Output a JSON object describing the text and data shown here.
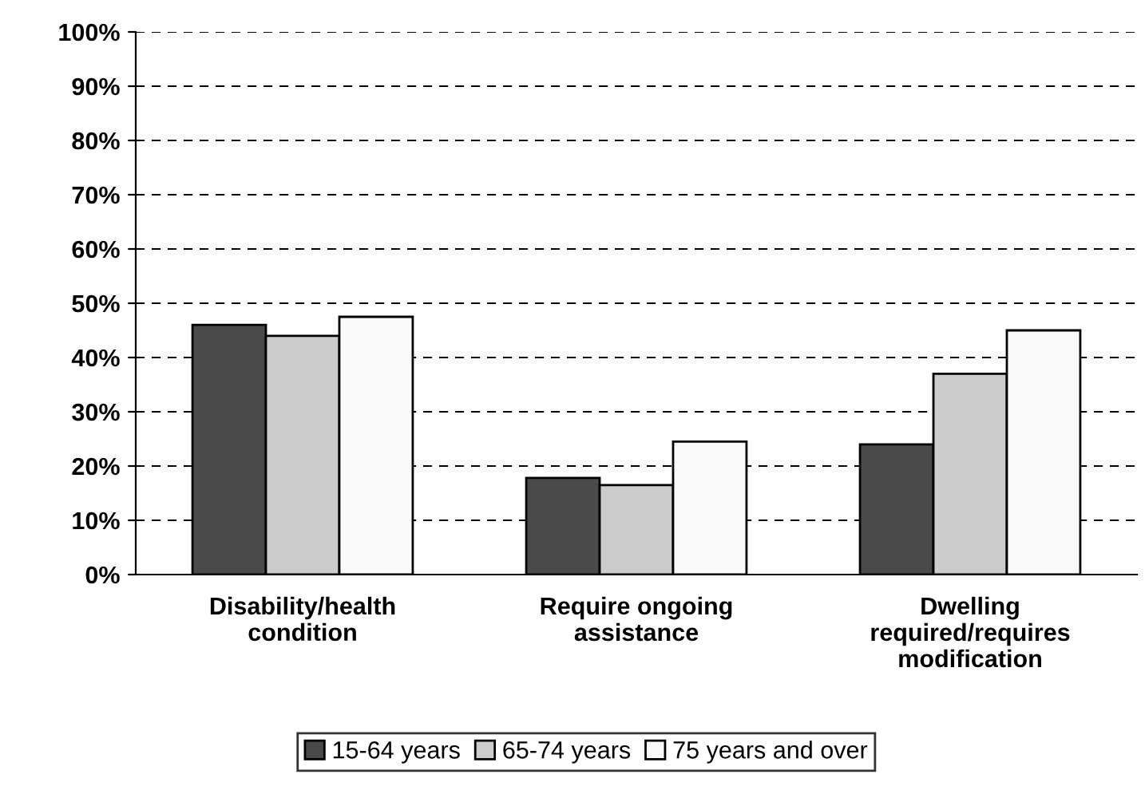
{
  "chart_data": {
    "type": "bar",
    "categories": [
      "Disability/health\ncondition",
      "Require ongoing\nassistance",
      "Dwelling\nrequired/requires\nmodification"
    ],
    "series": [
      {
        "name": "15-64 years",
        "color": "#4a4a4a",
        "values": [
          46,
          17.8,
          24
        ]
      },
      {
        "name": "65-74 years",
        "color": "#cccccc",
        "values": [
          44,
          16.5,
          37
        ]
      },
      {
        "name": "75 years and over",
        "color": "#fafafa",
        "values": [
          47.5,
          24.5,
          45
        ]
      }
    ],
    "ylim": [
      0,
      100
    ],
    "yticks": [
      {
        "value": 0,
        "label": "0%"
      },
      {
        "value": 10,
        "label": "10%"
      },
      {
        "value": 20,
        "label": "20%"
      },
      {
        "value": 30,
        "label": "30%"
      },
      {
        "value": 40,
        "label": "40%"
      },
      {
        "value": 50,
        "label": "50%"
      },
      {
        "value": 60,
        "label": "60%"
      },
      {
        "value": 70,
        "label": "70%"
      },
      {
        "value": 80,
        "label": "80%"
      },
      {
        "value": 90,
        "label": "90%"
      },
      {
        "value": 100,
        "label": "100%"
      }
    ],
    "grid": "y",
    "legend": "bottom"
  }
}
